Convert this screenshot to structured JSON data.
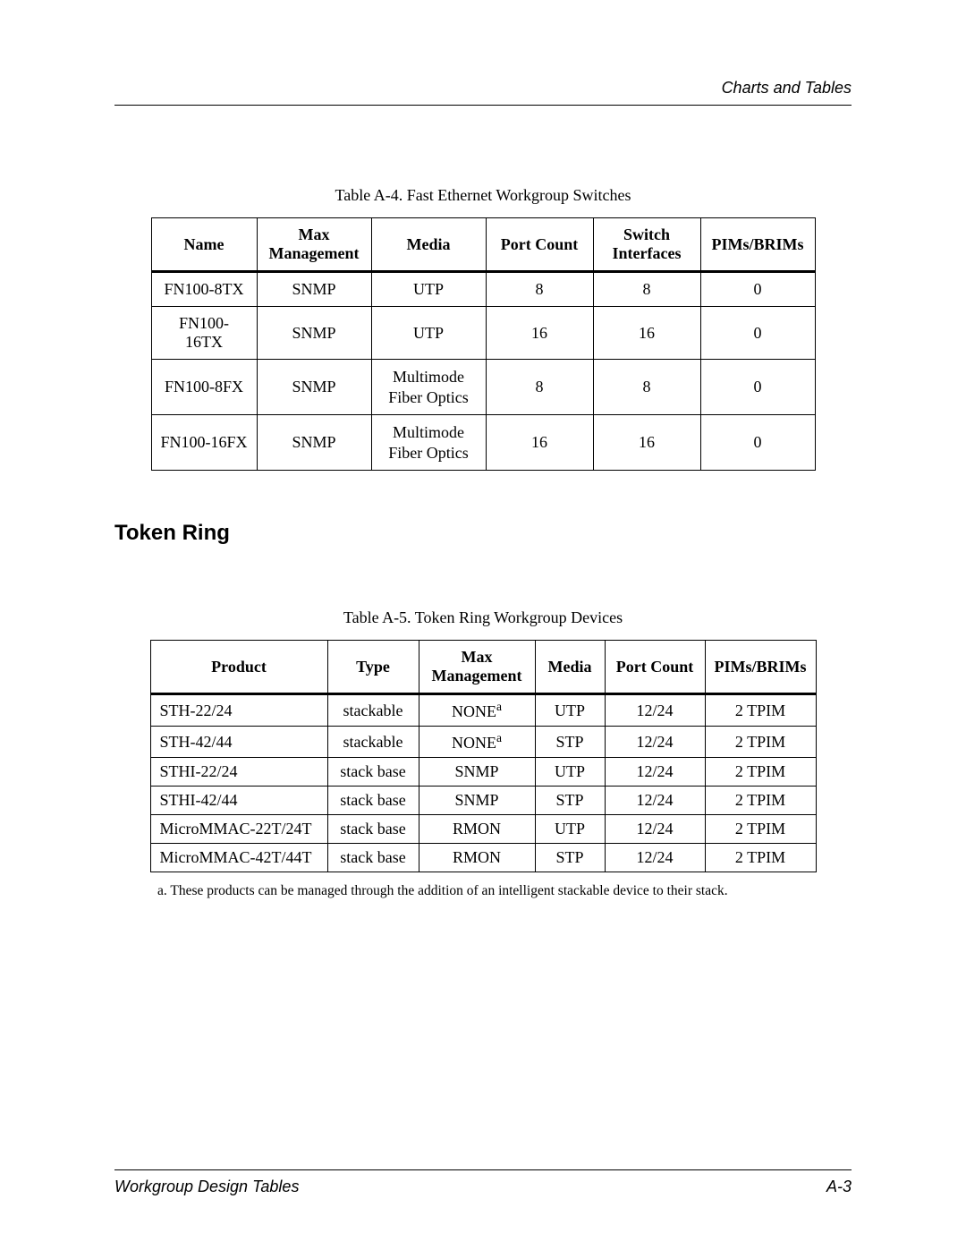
{
  "header": {
    "section": "Charts and Tables"
  },
  "footer": {
    "left": "Workgroup Design Tables",
    "right": "A-3"
  },
  "tableA4": {
    "caption": "Table A-4.  Fast Ethernet Workgroup Switches",
    "columns": [
      "Name",
      "Max Management",
      "Media",
      "Port Count",
      "Switch Interfaces",
      "PIMs/BRIMs"
    ],
    "column_align": [
      "center",
      "center",
      "center",
      "center",
      "center",
      "center"
    ],
    "rows": [
      [
        "FN100-8TX",
        "SNMP",
        "UTP",
        "8",
        "8",
        "0"
      ],
      [
        "FN100-16TX",
        "SNMP",
        "UTP",
        "16",
        "16",
        "0"
      ],
      [
        "FN100-8FX",
        "SNMP",
        "Multimode\nFiber Optics",
        "8",
        "8",
        "0"
      ],
      [
        "FN100-16FX",
        "SNMP",
        "Multimode\nFiber Optics",
        "16",
        "16",
        "0"
      ]
    ]
  },
  "sectionHeading": "Token Ring",
  "tableA5": {
    "caption": "Table A-5.  Token Ring Workgroup Devices",
    "columns": [
      "Product",
      "Type",
      "Max Management",
      "Media",
      "Port Count",
      "PIMs/BRIMs"
    ],
    "column_align": [
      "left",
      "center",
      "center",
      "center",
      "center",
      "center"
    ],
    "rows": [
      [
        "STH-22/24",
        "stackable",
        "NONE^a",
        "UTP",
        "12/24",
        "2 TPIM"
      ],
      [
        "STH-42/44",
        "stackable",
        "NONE^a",
        "STP",
        "12/24",
        "2 TPIM"
      ],
      [
        "STHI-22/24",
        "stack base",
        "SNMP",
        "UTP",
        "12/24",
        "2 TPIM"
      ],
      [
        "STHI-42/44",
        "stack base",
        "SNMP",
        "STP",
        "12/24",
        "2 TPIM"
      ],
      [
        "MicroMMAC-22T/24T",
        "stack base",
        "RMON",
        "UTP",
        "12/24",
        "2 TPIM"
      ],
      [
        "MicroMMAC-42T/44T",
        "stack base",
        "RMON",
        "STP",
        "12/24",
        "2 TPIM"
      ]
    ],
    "footnote": "a. These products can be managed through the addition of an intelligent stackable device to their stack."
  }
}
